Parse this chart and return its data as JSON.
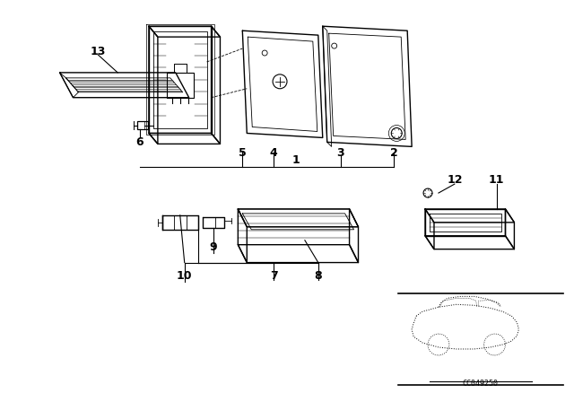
{
  "bg_color": "#ffffff",
  "line_color": "#000000",
  "fig_width": 6.4,
  "fig_height": 4.48,
  "dpi": 100
}
